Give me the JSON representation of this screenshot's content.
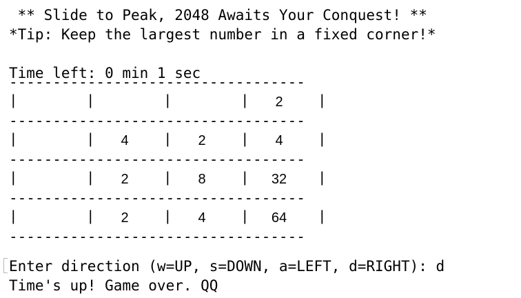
{
  "terminal": {
    "title_line": " ** Slide to Peak, 2048 Awaits Your Conquest! **",
    "tip_line": "*Tip: Keep the largest number in a fixed corner!*",
    "time_line": "Time left: 0 min 1 sec",
    "prompt_line": "Enter direction (w=UP, s=DOWN, a=LEFT, d=RIGHT): d",
    "result_line": "Time's up! Game over. QQ"
  },
  "board": {
    "separator": "----------------------------------",
    "border_char": "|",
    "rows": [
      [
        "",
        "",
        "",
        "2"
      ],
      [
        "",
        "4",
        "2",
        "4"
      ],
      [
        "",
        "2",
        "8",
        "32"
      ],
      [
        "",
        "2",
        "4",
        "64"
      ]
    ]
  }
}
